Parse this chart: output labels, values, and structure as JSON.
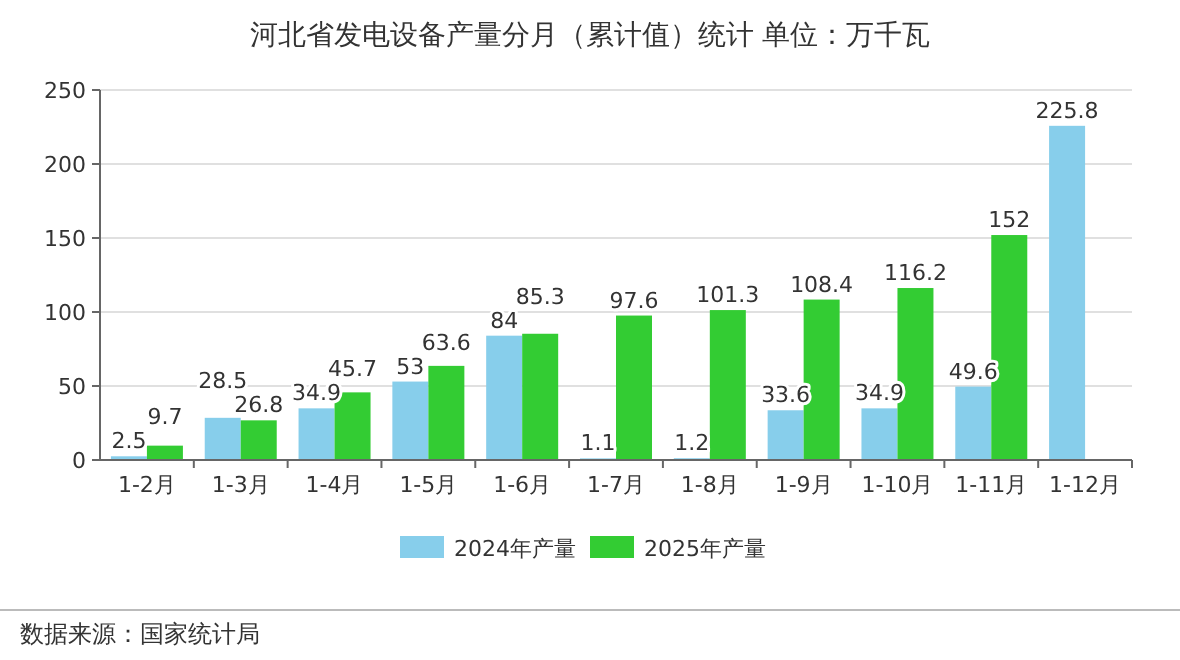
{
  "chart_data": {
    "type": "bar",
    "title": "河北省发电设备产量分月（累计值）统计 单位：万千瓦",
    "categories": [
      "1-2月",
      "1-3月",
      "1-4月",
      "1-5月",
      "1-6月",
      "1-7月",
      "1-8月",
      "1-9月",
      "1-10月",
      "1-11月",
      "1-12月"
    ],
    "series": [
      {
        "name": "2024年产量",
        "color": "#87ceeb",
        "values": [
          2.5,
          28.5,
          34.9,
          53,
          84,
          1.1,
          1.2,
          33.6,
          34.9,
          49.6,
          225.8
        ]
      },
      {
        "name": "2025年产量",
        "color": "#33cc33",
        "values": [
          9.7,
          26.8,
          45.7,
          63.6,
          85.3,
          97.6,
          101.3,
          108.4,
          116.2,
          152,
          null
        ]
      }
    ],
    "ylim": [
      0,
      250
    ],
    "yticks": [
      0,
      50,
      100,
      150,
      200,
      250
    ],
    "grid": "y",
    "legend": "bottom",
    "data_labels": true,
    "annotations": [
      "数据来源：国家统计局"
    ]
  }
}
